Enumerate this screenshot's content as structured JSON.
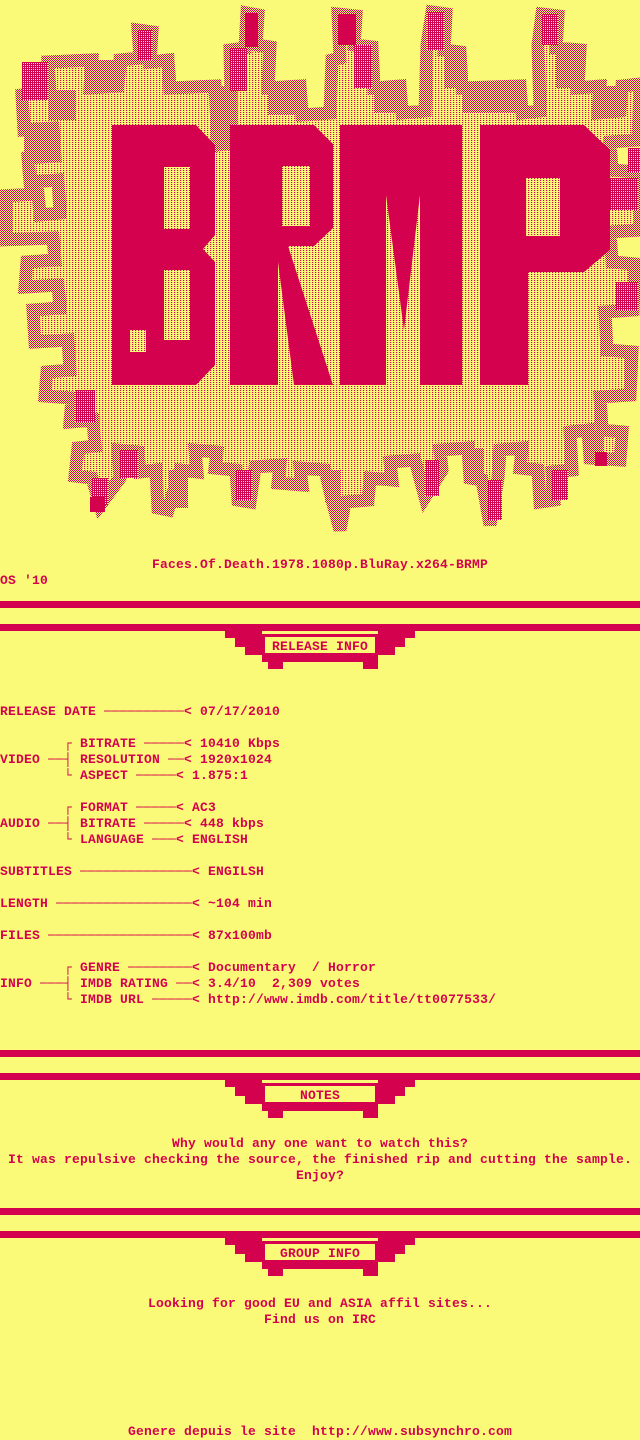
{
  "colors": {
    "background": "#FAFA78",
    "accent": "#D4024E"
  },
  "logo": {
    "text": "BRMP"
  },
  "header": {
    "release_name": "Faces.Of.Death.1978.1080p.BluRay.x264-BRMP",
    "tagline": "OS '10"
  },
  "sections": {
    "release_info": {
      "title": "RELEASE INFO",
      "lines": [
        "RELEASE DATE ──────────< 07/17/2010",
        "",
        "        ┌ BITRATE ─────< 10410 Kbps",
        "VIDEO ──┤ RESOLUTION ──< 1920x1024",
        "        └ ASPECT ─────< 1.875:1",
        "",
        "        ┌ FORMAT ─────< AC3",
        "AUDIO ──┤ BITRATE ─────< 448 kbps",
        "        └ LANGUAGE ───< ENGLISH",
        "",
        "SUBTITLES ──────────────< ENGILSH",
        "",
        "LENGTH ─────────────────< ~104 min",
        "",
        "FILES ──────────────────< 87x100mb",
        "",
        "        ┌ GENRE ────────< Documentary  / Horror",
        "INFO ───┤ IMDB RATING ──< 3.4/10  2,309 votes",
        "        └ IMDB URL ─────< http://www.imdb.com/title/tt0077533/"
      ]
    },
    "notes": {
      "title": "NOTES",
      "lines": [
        "Why would any one want to watch this?",
        "It was repulsive checking the source, the finished rip and cutting the sample.",
        "Enjoy?"
      ]
    },
    "group_info": {
      "title": "GROUP INFO",
      "lines": [
        "Looking for good EU and ASIA affil sites...",
        "Find us on IRC"
      ]
    }
  },
  "footer": {
    "credit": "Genere depuis le site  http://www.subsynchro.com"
  }
}
